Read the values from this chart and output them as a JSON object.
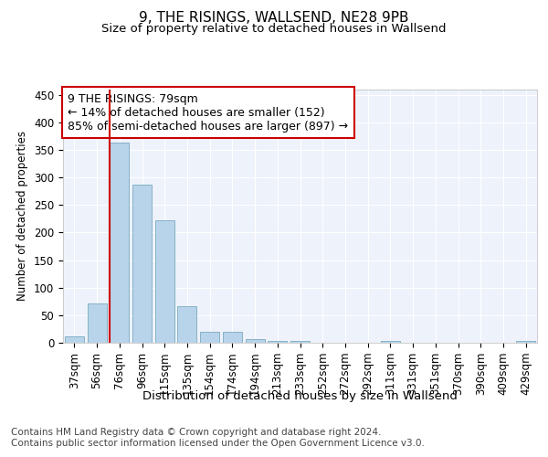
{
  "title": "9, THE RISINGS, WALLSEND, NE28 9PB",
  "subtitle": "Size of property relative to detached houses in Wallsend",
  "xlabel": "Distribution of detached houses by size in Wallsend",
  "ylabel": "Number of detached properties",
  "categories": [
    "37sqm",
    "56sqm",
    "76sqm",
    "96sqm",
    "115sqm",
    "135sqm",
    "154sqm",
    "174sqm",
    "194sqm",
    "213sqm",
    "233sqm",
    "252sqm",
    "272sqm",
    "292sqm",
    "311sqm",
    "331sqm",
    "351sqm",
    "370sqm",
    "390sqm",
    "409sqm",
    "429sqm"
  ],
  "values": [
    12,
    72,
    363,
    286,
    222,
    67,
    20,
    20,
    6,
    4,
    3,
    0,
    0,
    0,
    3,
    0,
    0,
    0,
    0,
    0,
    3
  ],
  "bar_color": "#b8d4ea",
  "bar_edge_color": "#7aaabf",
  "vline_x_idx": 2,
  "vline_color": "#cc0000",
  "ylim": [
    0,
    460
  ],
  "yticks": [
    0,
    50,
    100,
    150,
    200,
    250,
    300,
    350,
    400,
    450
  ],
  "annotation_text": "9 THE RISINGS: 79sqm\n← 14% of detached houses are smaller (152)\n85% of semi-detached houses are larger (897) →",
  "annotation_box_color": "#ffffff",
  "annotation_box_edge_color": "#cc0000",
  "footer_line1": "Contains HM Land Registry data © Crown copyright and database right 2024.",
  "footer_line2": "Contains public sector information licensed under the Open Government Licence v3.0.",
  "plot_bg_color": "#eef2fb",
  "title_fontsize": 11,
  "subtitle_fontsize": 9.5,
  "annotation_fontsize": 9,
  "footer_fontsize": 7.5,
  "tick_fontsize": 8.5,
  "ylabel_fontsize": 8.5,
  "xlabel_fontsize": 9.5
}
